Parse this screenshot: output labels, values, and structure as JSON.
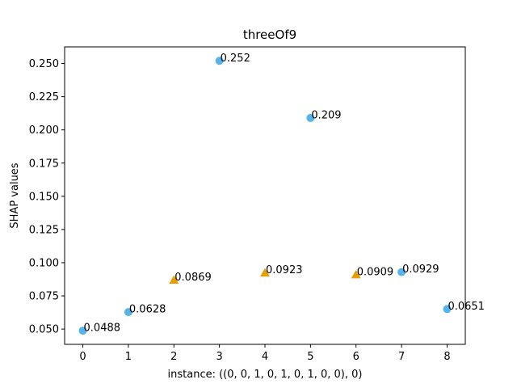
{
  "chart_data": {
    "type": "scatter",
    "title": "threeOf9",
    "xlabel": "instance: ((0, 0, 1, 0, 1, 0, 1, 0, 0), 0)",
    "ylabel": "SHAP values",
    "xlim": [
      -0.4,
      8.4
    ],
    "ylim": [
      0.0385,
      0.2625
    ],
    "xticks": [
      0,
      1,
      2,
      3,
      4,
      5,
      6,
      7,
      8
    ],
    "xtick_labels": [
      "0",
      "1",
      "2",
      "3",
      "4",
      "5",
      "6",
      "7",
      "8"
    ],
    "yticks": [
      0.05,
      0.075,
      0.1,
      0.125,
      0.15,
      0.175,
      0.2,
      0.225,
      0.25
    ],
    "ytick_labels": [
      "0.050",
      "0.075",
      "0.100",
      "0.125",
      "0.150",
      "0.175",
      "0.200",
      "0.225",
      "0.250"
    ],
    "grid": false,
    "legend": false,
    "series": [
      {
        "marker": "circle",
        "color": "#56b4e9",
        "x": [
          0,
          1,
          3,
          5,
          7,
          8
        ],
        "y": [
          0.0488,
          0.0628,
          0.252,
          0.209,
          0.0929,
          0.0651
        ],
        "labels": [
          "0.0488",
          "0.0628",
          "0.252",
          "0.209",
          "0.0929",
          "0.0651"
        ]
      },
      {
        "marker": "triangle",
        "color": "#e69f00",
        "x": [
          2,
          4,
          6
        ],
        "y": [
          0.0869,
          0.0923,
          0.0909
        ],
        "labels": [
          "0.0869",
          "0.0923",
          "0.0909"
        ]
      }
    ]
  }
}
